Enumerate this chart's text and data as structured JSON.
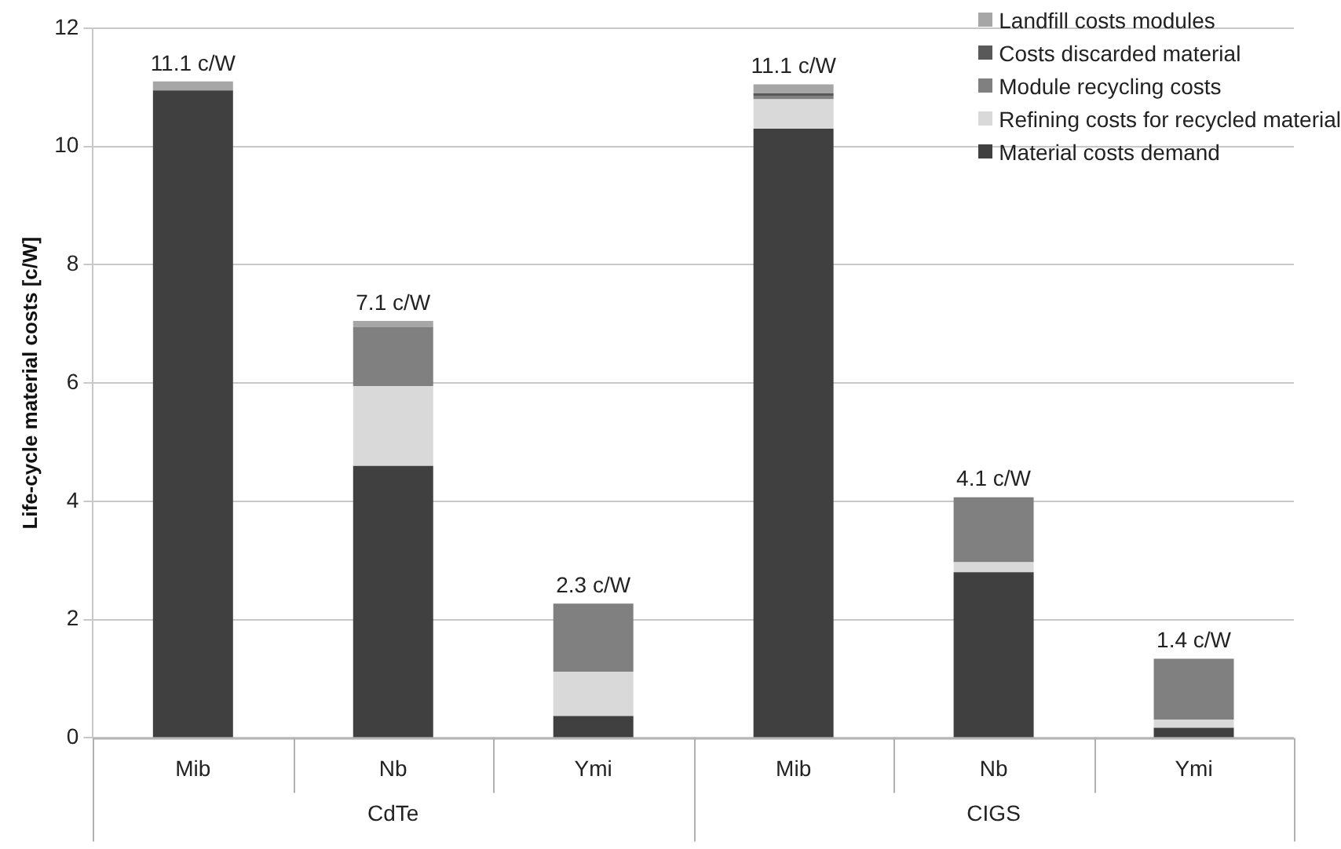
{
  "chart_data": {
    "type": "bar",
    "stacked": true,
    "ylabel": "Life-cycle material costs [c/W]",
    "categories": [
      "Mib",
      "Nb",
      "Ymi",
      "Mib",
      "Nb",
      "Ymi"
    ],
    "series": [
      {
        "name": "Material costs demand",
        "color": "#404040",
        "values": [
          10.95,
          4.6,
          0.37,
          10.3,
          2.8,
          0.17
        ]
      },
      {
        "name": "Refining costs for recycled material",
        "color": "#d9d9d9",
        "values": [
          0,
          1.35,
          0.75,
          0.5,
          0.17,
          0.14
        ]
      },
      {
        "name": "Module recycling costs",
        "color": "#808080",
        "values": [
          0,
          1.0,
          1.15,
          0.05,
          1.1,
          1.03
        ]
      },
      {
        "name": "Costs discarded material",
        "color": "#595959",
        "values": [
          0,
          0,
          0,
          0.05,
          0,
          0
        ]
      },
      {
        "name": "Landfill costs modules",
        "color": "#a6a6a6",
        "values": [
          0.15,
          0.1,
          0,
          0.15,
          null,
          null
        ]
      }
    ],
    "totals": [
      "11.1 c/W",
      "7.1 c/W",
      "2.3 c/W",
      "11.1 c/W",
      "4.1 c/W",
      "1.4 c/W"
    ],
    "annotations": [
      "CdTe",
      "CIGS"
    ],
    "ylim": [
      0,
      12
    ],
    "yticks": [
      0,
      2,
      4,
      6,
      8,
      10,
      12
    ],
    "grid": "y",
    "legend": "top right"
  }
}
